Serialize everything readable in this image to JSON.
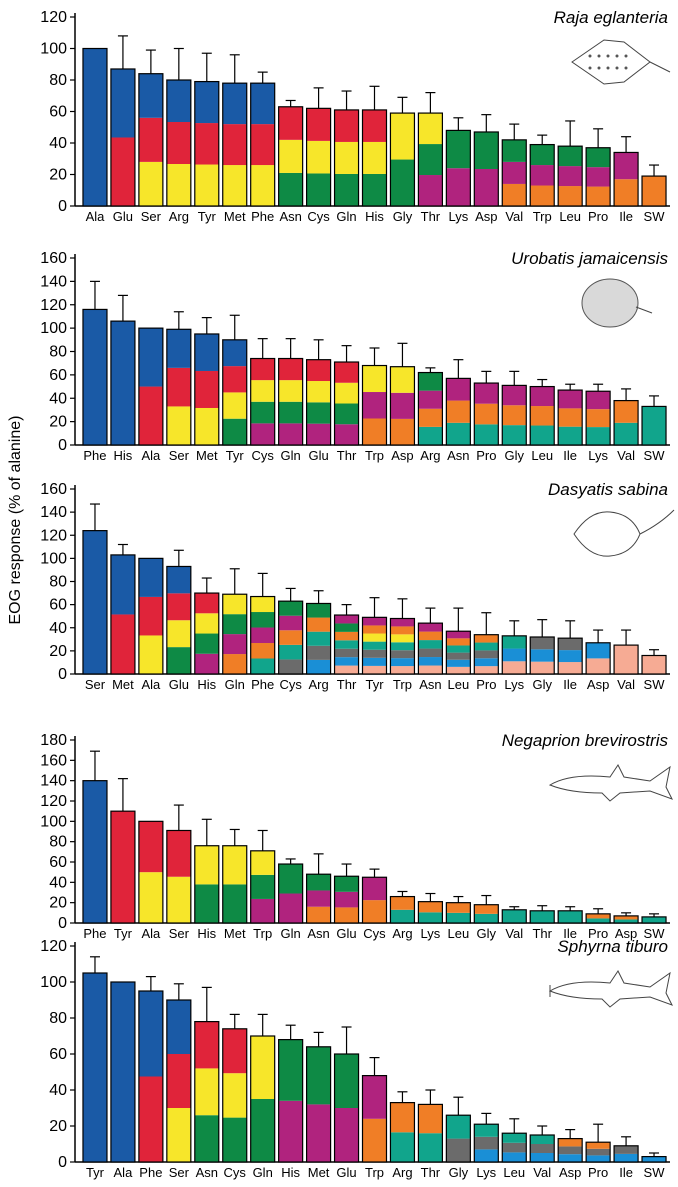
{
  "ylabel": "EOG response (% of alanine)",
  "colors": {
    "blue": "#1a5aa6",
    "red": "#e0243a",
    "yellow": "#f7e62a",
    "green": "#0e8a45",
    "magenta": "#b0237e",
    "orange": "#f07e26",
    "teal": "#11a58c",
    "gray": "#6b6b6b",
    "pink": "#f6ab94",
    "lightblue": "#1a8fd6"
  },
  "chart_data": [
    {
      "type": "bar",
      "title": "Raja eglanteria",
      "ylim": [
        0,
        120
      ],
      "yticks": [
        0,
        20,
        40,
        60,
        80,
        100,
        120
      ],
      "drawing": "skate",
      "categories": [
        "Ala",
        "Glu",
        "Ser",
        "Arg",
        "Tyr",
        "Met",
        "Phe",
        "Asn",
        "Cys",
        "Gln",
        "His",
        "Gly",
        "Thr",
        "Lys",
        "Asp",
        "Val",
        "Trp",
        "Leu",
        "Pro",
        "Ile",
        "SW"
      ],
      "values": [
        100,
        87,
        84,
        80,
        79,
        78,
        78,
        63,
        62,
        61,
        61,
        59,
        59,
        48,
        47,
        42,
        39,
        38,
        37,
        34,
        19
      ],
      "errors": [
        0,
        21,
        15,
        20,
        18,
        18,
        7,
        4,
        13,
        12,
        15,
        10,
        13,
        8,
        11,
        10,
        6,
        16,
        12,
        10,
        7
      ],
      "segments": [
        [
          "blue"
        ],
        [
          "red",
          "blue"
        ],
        [
          "yellow",
          "red",
          "blue"
        ],
        [
          "yellow",
          "red",
          "blue"
        ],
        [
          "yellow",
          "red",
          "blue"
        ],
        [
          "yellow",
          "red",
          "blue"
        ],
        [
          "yellow",
          "red",
          "blue"
        ],
        [
          "green",
          "yellow",
          "red"
        ],
        [
          "green",
          "yellow",
          "red"
        ],
        [
          "green",
          "yellow",
          "red"
        ],
        [
          "green",
          "yellow",
          "red"
        ],
        [
          "green",
          "yellow"
        ],
        [
          "magenta",
          "green",
          "yellow"
        ],
        [
          "magenta",
          "green"
        ],
        [
          "magenta",
          "green"
        ],
        [
          "orange",
          "magenta",
          "green"
        ],
        [
          "orange",
          "magenta",
          "green"
        ],
        [
          "orange",
          "magenta",
          "green"
        ],
        [
          "orange",
          "magenta",
          "green"
        ],
        [
          "orange",
          "magenta"
        ],
        [
          "orange"
        ]
      ]
    },
    {
      "type": "bar",
      "title": "Urobatis jamaicensis",
      "ylim": [
        0,
        160
      ],
      "yticks": [
        0,
        20,
        40,
        60,
        80,
        100,
        120,
        140,
        160
      ],
      "drawing": "round-stingray",
      "categories": [
        "Phe",
        "His",
        "Ala",
        "Ser",
        "Met",
        "Tyr",
        "Cys",
        "Gln",
        "Glu",
        "Thr",
        "Trp",
        "Asp",
        "Arg",
        "Asn",
        "Pro",
        "Gly",
        "Leu",
        "Ile",
        "Lys",
        "Val",
        "SW"
      ],
      "values": [
        116,
        106,
        100,
        99,
        95,
        90,
        74,
        74,
        73,
        71,
        68,
        67,
        62,
        57,
        53,
        51,
        50,
        47,
        46,
        38,
        33
      ],
      "errors": [
        24,
        22,
        0,
        15,
        14,
        21,
        17,
        17,
        17,
        14,
        15,
        20,
        4,
        16,
        10,
        12,
        6,
        5,
        6,
        10,
        9
      ],
      "segments": [
        [
          "blue"
        ],
        [
          "blue"
        ],
        [
          "red",
          "blue"
        ],
        [
          "yellow",
          "red",
          "blue"
        ],
        [
          "yellow",
          "red",
          "blue"
        ],
        [
          "green",
          "yellow",
          "red",
          "blue"
        ],
        [
          "magenta",
          "green",
          "yellow",
          "red"
        ],
        [
          "magenta",
          "green",
          "yellow",
          "red"
        ],
        [
          "magenta",
          "green",
          "yellow",
          "red"
        ],
        [
          "magenta",
          "green",
          "yellow",
          "red"
        ],
        [
          "orange",
          "magenta",
          "yellow"
        ],
        [
          "orange",
          "magenta",
          "yellow"
        ],
        [
          "teal",
          "orange",
          "magenta",
          "green"
        ],
        [
          "teal",
          "orange",
          "magenta"
        ],
        [
          "teal",
          "orange",
          "magenta"
        ],
        [
          "teal",
          "orange",
          "magenta"
        ],
        [
          "teal",
          "orange",
          "magenta"
        ],
        [
          "teal",
          "orange",
          "magenta"
        ],
        [
          "teal",
          "orange",
          "magenta"
        ],
        [
          "teal",
          "orange"
        ],
        [
          "teal"
        ]
      ]
    },
    {
      "type": "bar",
      "title": "Dasyatis sabina",
      "ylim": [
        0,
        160
      ],
      "yticks": [
        0,
        20,
        40,
        60,
        80,
        100,
        120,
        140,
        160
      ],
      "drawing": "whiptail-stingray",
      "categories": [
        "Ser",
        "Met",
        "Ala",
        "Glu",
        "His",
        "Gln",
        "Phe",
        "Cys",
        "Arg",
        "Thr",
        "Tyr",
        "Trp",
        "Asn",
        "Leu",
        "Pro",
        "Lys",
        "Gly",
        "Ile",
        "Asp",
        "Val",
        "SW"
      ],
      "values": [
        124,
        103,
        100,
        93,
        70,
        69,
        67,
        63,
        61,
        51,
        49,
        48,
        44,
        37,
        34,
        33,
        32,
        31,
        27,
        25,
        16
      ],
      "errors": [
        23,
        9,
        0,
        14,
        13,
        22,
        20,
        11,
        11,
        9,
        17,
        17,
        13,
        20,
        19,
        13,
        15,
        15,
        11,
        13,
        5
      ],
      "segments": [
        [
          "blue"
        ],
        [
          "red",
          "blue"
        ],
        [
          "yellow",
          "red",
          "blue"
        ],
        [
          "green",
          "yellow",
          "red",
          "blue"
        ],
        [
          "magenta",
          "green",
          "yellow",
          "red"
        ],
        [
          "orange",
          "magenta",
          "green",
          "yellow"
        ],
        [
          "teal",
          "orange",
          "magenta",
          "green",
          "yellow"
        ],
        [
          "gray",
          "teal",
          "orange",
          "magenta",
          "green"
        ],
        [
          "lightblue",
          "gray",
          "teal",
          "orange",
          "green"
        ],
        [
          "pink",
          "lightblue",
          "gray",
          "teal",
          "orange",
          "green",
          "magenta"
        ],
        [
          "pink",
          "lightblue",
          "gray",
          "teal",
          "yellow",
          "orange",
          "magenta"
        ],
        [
          "pink",
          "lightblue",
          "gray",
          "teal",
          "yellow",
          "orange",
          "magenta"
        ],
        [
          "pink",
          "lightblue",
          "gray",
          "teal",
          "orange",
          "magenta"
        ],
        [
          "pink",
          "lightblue",
          "gray",
          "teal",
          "orange",
          "magenta"
        ],
        [
          "pink",
          "lightblue",
          "gray",
          "teal",
          "orange"
        ],
        [
          "pink",
          "lightblue",
          "teal"
        ],
        [
          "pink",
          "lightblue",
          "gray"
        ],
        [
          "pink",
          "lightblue",
          "gray"
        ],
        [
          "pink",
          "lightblue"
        ],
        [
          "pink"
        ],
        [
          "pink"
        ]
      ]
    },
    {
      "type": "bar",
      "title": "Negaprion brevirostris",
      "ylim": [
        0,
        180
      ],
      "yticks": [
        0,
        20,
        40,
        60,
        80,
        100,
        120,
        140,
        160,
        180
      ],
      "drawing": "lemon-shark",
      "categories": [
        "Phe",
        "Tyr",
        "Ala",
        "Ser",
        "His",
        "Met",
        "Trp",
        "Gln",
        "Asn",
        "Glu",
        "Cys",
        "Arg",
        "Lys",
        "Leu",
        "Gly",
        "Val",
        "Thr",
        "Ile",
        "Pro",
        "Asp",
        "SW"
      ],
      "values": [
        140,
        110,
        100,
        91,
        76,
        76,
        71,
        58,
        48,
        46,
        45,
        26,
        21,
        20,
        18,
        13,
        12,
        12,
        9,
        7,
        6
      ],
      "errors": [
        29,
        32,
        0,
        25,
        26,
        16,
        20,
        5,
        20,
        12,
        8,
        5,
        8,
        6,
        9,
        3,
        5,
        4,
        5,
        3,
        3
      ],
      "segments": [
        [
          "blue"
        ],
        [
          "red"
        ],
        [
          "yellow",
          "red"
        ],
        [
          "yellow",
          "red"
        ],
        [
          "green",
          "yellow"
        ],
        [
          "green",
          "yellow"
        ],
        [
          "magenta",
          "green",
          "yellow"
        ],
        [
          "magenta",
          "green"
        ],
        [
          "orange",
          "magenta",
          "green"
        ],
        [
          "orange",
          "magenta",
          "green"
        ],
        [
          "orange",
          "magenta"
        ],
        [
          "teal",
          "orange"
        ],
        [
          "teal",
          "orange"
        ],
        [
          "teal",
          "orange"
        ],
        [
          "teal",
          "orange"
        ],
        [
          "teal"
        ],
        [
          "teal"
        ],
        [
          "teal"
        ],
        [
          "teal",
          "orange"
        ],
        [
          "teal",
          "orange"
        ],
        [
          "teal"
        ]
      ]
    },
    {
      "type": "bar",
      "title": "Sphyrna tiburo",
      "ylim": [
        0,
        120
      ],
      "yticks": [
        0,
        20,
        40,
        60,
        80,
        100,
        120
      ],
      "drawing": "bonnethead",
      "categories": [
        "Tyr",
        "Ala",
        "Phe",
        "Ser",
        "Asn",
        "Cys",
        "Gln",
        "His",
        "Met",
        "Glu",
        "Trp",
        "Arg",
        "Thr",
        "Gly",
        "Lys",
        "Leu",
        "Val",
        "Asp",
        "Pro",
        "Ile",
        "SW"
      ],
      "values": [
        105,
        100,
        95,
        90,
        78,
        74,
        70,
        68,
        64,
        60,
        48,
        33,
        32,
        26,
        21,
        16,
        15,
        13,
        11,
        9,
        3
      ],
      "errors": [
        9,
        0,
        8,
        9,
        19,
        8,
        12,
        8,
        8,
        15,
        10,
        6,
        8,
        10,
        6,
        8,
        5,
        5,
        10,
        5,
        2
      ],
      "segments": [
        [
          "blue"
        ],
        [
          "blue"
        ],
        [
          "red",
          "blue"
        ],
        [
          "yellow",
          "red",
          "blue"
        ],
        [
          "green",
          "yellow",
          "red"
        ],
        [
          "green",
          "yellow",
          "red"
        ],
        [
          "green",
          "yellow"
        ],
        [
          "magenta",
          "green"
        ],
        [
          "magenta",
          "green"
        ],
        [
          "magenta",
          "green"
        ],
        [
          "orange",
          "magenta"
        ],
        [
          "teal",
          "orange"
        ],
        [
          "teal",
          "orange"
        ],
        [
          "gray",
          "teal"
        ],
        [
          "lightblue",
          "gray",
          "teal"
        ],
        [
          "lightblue",
          "gray",
          "teal"
        ],
        [
          "lightblue",
          "gray",
          "teal"
        ],
        [
          "lightblue",
          "gray",
          "orange"
        ],
        [
          "lightblue",
          "gray",
          "orange"
        ],
        [
          "lightblue",
          "gray"
        ],
        [
          "lightblue"
        ]
      ]
    }
  ]
}
